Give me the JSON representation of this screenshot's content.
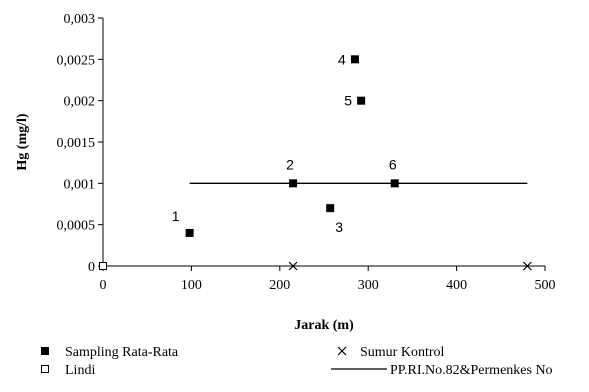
{
  "chart_data": {
    "type": "scatter",
    "xlabel": "Jarak (m)",
    "ylabel": "Hg (mg/l)",
    "xlim": [
      0,
      500
    ],
    "ylim": [
      0,
      0.003
    ],
    "x_ticks": [
      0,
      100,
      200,
      300,
      400,
      500
    ],
    "y_ticks": [
      0,
      0.0005,
      0.001,
      0.0015,
      0.002,
      0.0025,
      0.003
    ],
    "y_tick_labels": [
      "0",
      "0,0005",
      "0,001",
      "0,0015",
      "0,002",
      "0,0025",
      "0,003"
    ],
    "x_tick_labels": [
      "0",
      "100",
      "200",
      "300",
      "400",
      "500"
    ],
    "grid": false,
    "legend_position": "bottom",
    "series": [
      {
        "name": "Sampling Rata-Rata",
        "marker": "filled-square",
        "color": "#000000",
        "points": [
          {
            "x": 98,
            "y": 0.0004,
            "label": "1"
          },
          {
            "x": 215,
            "y": 0.001,
            "label": "2"
          },
          {
            "x": 257,
            "y": 0.0007,
            "label": "3"
          },
          {
            "x": 285,
            "y": 0.0025,
            "label": "4"
          },
          {
            "x": 292,
            "y": 0.002,
            "label": "5"
          },
          {
            "x": 330,
            "y": 0.001,
            "label": "6"
          }
        ]
      },
      {
        "name": "Lindi",
        "marker": "open-square",
        "color": "#000000",
        "points": [
          {
            "x": 0,
            "y": 0,
            "label": ""
          }
        ]
      },
      {
        "name": "Sumur Kontrol",
        "marker": "cross",
        "color": "#000000",
        "points": [
          {
            "x": 215,
            "y": 0,
            "label": ""
          },
          {
            "x": 480,
            "y": 0,
            "label": ""
          }
        ]
      },
      {
        "name": "PP.RI.No.82&Permenkes No",
        "marker": "line",
        "color": "#000000",
        "points": [
          {
            "x": 98,
            "y": 0.001,
            "label": ""
          },
          {
            "x": 480,
            "y": 0.001,
            "label": ""
          }
        ]
      }
    ]
  }
}
